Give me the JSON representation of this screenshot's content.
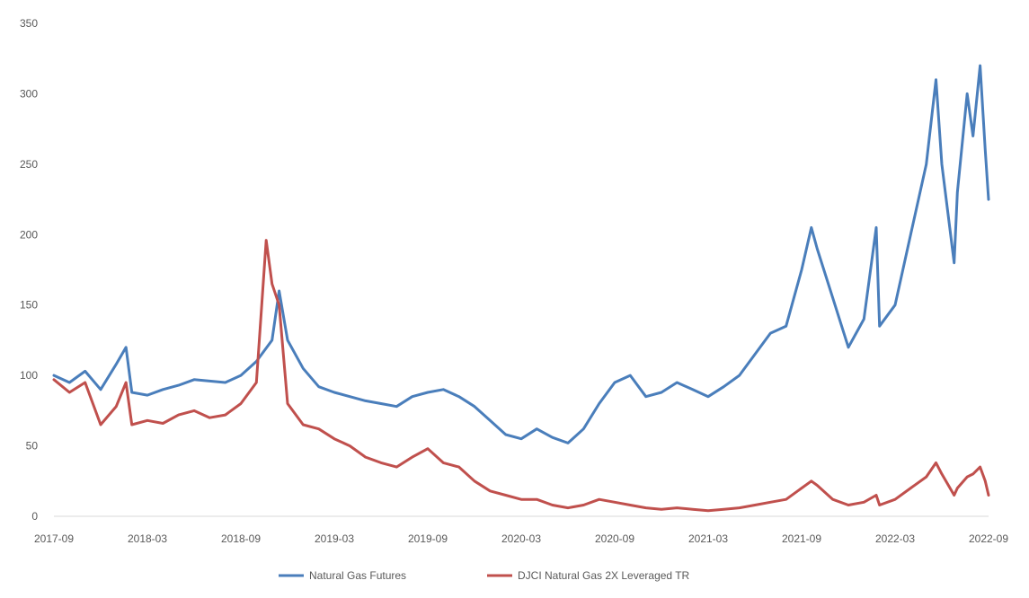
{
  "chart_data": {
    "type": "line",
    "title": "",
    "xlabel": "",
    "ylabel": "",
    "ylim": [
      0,
      350
    ],
    "yticks": [
      0,
      50,
      100,
      150,
      200,
      250,
      300,
      350
    ],
    "xticks": [
      "2017-09",
      "2018-03",
      "2018-09",
      "2019-03",
      "2019-09",
      "2020-03",
      "2020-09",
      "2021-03",
      "2021-09",
      "2022-03",
      "2022-09"
    ],
    "xlim": [
      "2017-09",
      "2022-09"
    ],
    "grid": false,
    "legend_position": "bottom",
    "series": [
      {
        "name": "Natural Gas Futures",
        "color": "#4a7ebb",
        "points": [
          [
            "2017-09",
            100
          ],
          [
            "2017-10",
            95
          ],
          [
            "2017-11",
            103
          ],
          [
            "2017-12",
            90
          ],
          [
            "2018-01",
            108
          ],
          [
            "2018-01-20",
            120
          ],
          [
            "2018-02",
            88
          ],
          [
            "2018-03",
            86
          ],
          [
            "2018-04",
            90
          ],
          [
            "2018-05",
            93
          ],
          [
            "2018-06",
            97
          ],
          [
            "2018-07",
            96
          ],
          [
            "2018-08",
            95
          ],
          [
            "2018-09",
            100
          ],
          [
            "2018-10",
            110
          ],
          [
            "2018-11",
            125
          ],
          [
            "2018-11-15",
            160
          ],
          [
            "2018-12",
            125
          ],
          [
            "2019-01",
            105
          ],
          [
            "2019-02",
            92
          ],
          [
            "2019-03",
            88
          ],
          [
            "2019-04",
            85
          ],
          [
            "2019-05",
            82
          ],
          [
            "2019-06",
            80
          ],
          [
            "2019-07",
            78
          ],
          [
            "2019-08",
            85
          ],
          [
            "2019-09",
            88
          ],
          [
            "2019-10",
            90
          ],
          [
            "2019-11",
            85
          ],
          [
            "2019-12",
            78
          ],
          [
            "2020-01",
            68
          ],
          [
            "2020-02",
            58
          ],
          [
            "2020-03",
            55
          ],
          [
            "2020-04",
            62
          ],
          [
            "2020-05",
            56
          ],
          [
            "2020-06",
            52
          ],
          [
            "2020-07",
            62
          ],
          [
            "2020-08",
            80
          ],
          [
            "2020-09",
            95
          ],
          [
            "2020-10",
            100
          ],
          [
            "2020-11",
            85
          ],
          [
            "2020-12",
            88
          ],
          [
            "2021-01",
            95
          ],
          [
            "2021-02",
            90
          ],
          [
            "2021-03",
            85
          ],
          [
            "2021-04",
            92
          ],
          [
            "2021-05",
            100
          ],
          [
            "2021-06",
            115
          ],
          [
            "2021-07",
            130
          ],
          [
            "2021-08",
            135
          ],
          [
            "2021-09",
            175
          ],
          [
            "2021-09-20",
            205
          ],
          [
            "2021-10",
            190
          ],
          [
            "2021-11",
            155
          ],
          [
            "2021-12",
            120
          ],
          [
            "2022-01",
            140
          ],
          [
            "2022-01-25",
            205
          ],
          [
            "2022-02",
            135
          ],
          [
            "2022-03",
            150
          ],
          [
            "2022-04",
            200
          ],
          [
            "2022-05",
            250
          ],
          [
            "2022-05-20",
            310
          ],
          [
            "2022-06",
            250
          ],
          [
            "2022-06-25",
            180
          ],
          [
            "2022-07",
            230
          ],
          [
            "2022-07-20",
            300
          ],
          [
            "2022-08",
            270
          ],
          [
            "2022-08-15",
            320
          ],
          [
            "2022-08-25",
            260
          ],
          [
            "2022-09",
            225
          ]
        ]
      },
      {
        "name": "DJCI Natural Gas 2X Leveraged TR",
        "color": "#c0504d",
        "points": [
          [
            "2017-09",
            97
          ],
          [
            "2017-10",
            88
          ],
          [
            "2017-11",
            95
          ],
          [
            "2017-12",
            65
          ],
          [
            "2018-01",
            78
          ],
          [
            "2018-01-20",
            95
          ],
          [
            "2018-02",
            65
          ],
          [
            "2018-03",
            68
          ],
          [
            "2018-04",
            66
          ],
          [
            "2018-05",
            72
          ],
          [
            "2018-06",
            75
          ],
          [
            "2018-07",
            70
          ],
          [
            "2018-08",
            72
          ],
          [
            "2018-09",
            80
          ],
          [
            "2018-10",
            95
          ],
          [
            "2018-10-20",
            196
          ],
          [
            "2018-11",
            165
          ],
          [
            "2018-11-15",
            150
          ],
          [
            "2018-12",
            80
          ],
          [
            "2019-01",
            65
          ],
          [
            "2019-02",
            62
          ],
          [
            "2019-03",
            55
          ],
          [
            "2019-04",
            50
          ],
          [
            "2019-05",
            42
          ],
          [
            "2019-06",
            38
          ],
          [
            "2019-07",
            35
          ],
          [
            "2019-08",
            42
          ],
          [
            "2019-09",
            48
          ],
          [
            "2019-10",
            38
          ],
          [
            "2019-11",
            35
          ],
          [
            "2019-12",
            25
          ],
          [
            "2020-01",
            18
          ],
          [
            "2020-02",
            15
          ],
          [
            "2020-03",
            12
          ],
          [
            "2020-04",
            12
          ],
          [
            "2020-05",
            8
          ],
          [
            "2020-06",
            6
          ],
          [
            "2020-07",
            8
          ],
          [
            "2020-08",
            12
          ],
          [
            "2020-09",
            10
          ],
          [
            "2020-10",
            8
          ],
          [
            "2020-11",
            6
          ],
          [
            "2020-12",
            5
          ],
          [
            "2021-01",
            6
          ],
          [
            "2021-02",
            5
          ],
          [
            "2021-03",
            4
          ],
          [
            "2021-04",
            5
          ],
          [
            "2021-05",
            6
          ],
          [
            "2021-06",
            8
          ],
          [
            "2021-07",
            10
          ],
          [
            "2021-08",
            12
          ],
          [
            "2021-09",
            20
          ],
          [
            "2021-09-20",
            25
          ],
          [
            "2021-10",
            22
          ],
          [
            "2021-11",
            12
          ],
          [
            "2021-12",
            8
          ],
          [
            "2022-01",
            10
          ],
          [
            "2022-01-25",
            15
          ],
          [
            "2022-02",
            8
          ],
          [
            "2022-03",
            12
          ],
          [
            "2022-04",
            20
          ],
          [
            "2022-05",
            28
          ],
          [
            "2022-05-20",
            38
          ],
          [
            "2022-06",
            30
          ],
          [
            "2022-06-25",
            15
          ],
          [
            "2022-07",
            20
          ],
          [
            "2022-07-20",
            28
          ],
          [
            "2022-08",
            30
          ],
          [
            "2022-08-15",
            35
          ],
          [
            "2022-08-25",
            25
          ],
          [
            "2022-09",
            15
          ]
        ]
      }
    ]
  }
}
